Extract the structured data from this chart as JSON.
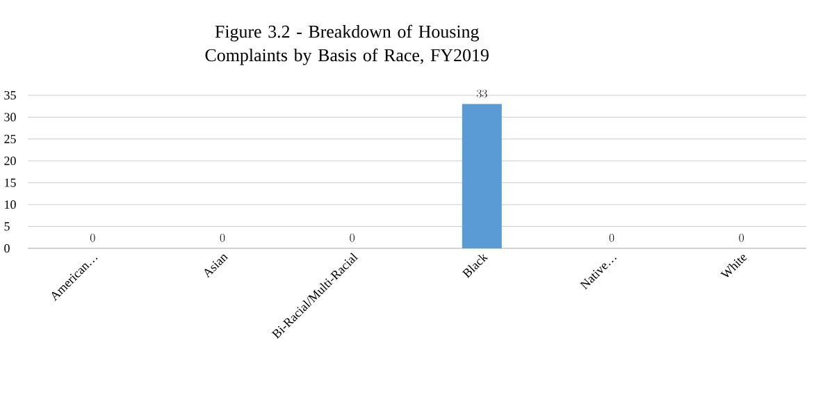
{
  "chart_data": {
    "type": "bar",
    "title": "Figure 3.2 - Breakdown of Housing Complaints by Basis of Race, FY2019",
    "categories": [
      "American…",
      "Asian",
      "Bi-Racial/Multi-Racial",
      "Black",
      "Native…",
      "White"
    ],
    "values": [
      0,
      0,
      0,
      33,
      0,
      0
    ],
    "color": "#5b9bd5",
    "ylim": [
      0,
      35
    ],
    "yticks": [
      0,
      5,
      10,
      15,
      20,
      25,
      30,
      35
    ],
    "grid": "y",
    "data_labels": true
  }
}
